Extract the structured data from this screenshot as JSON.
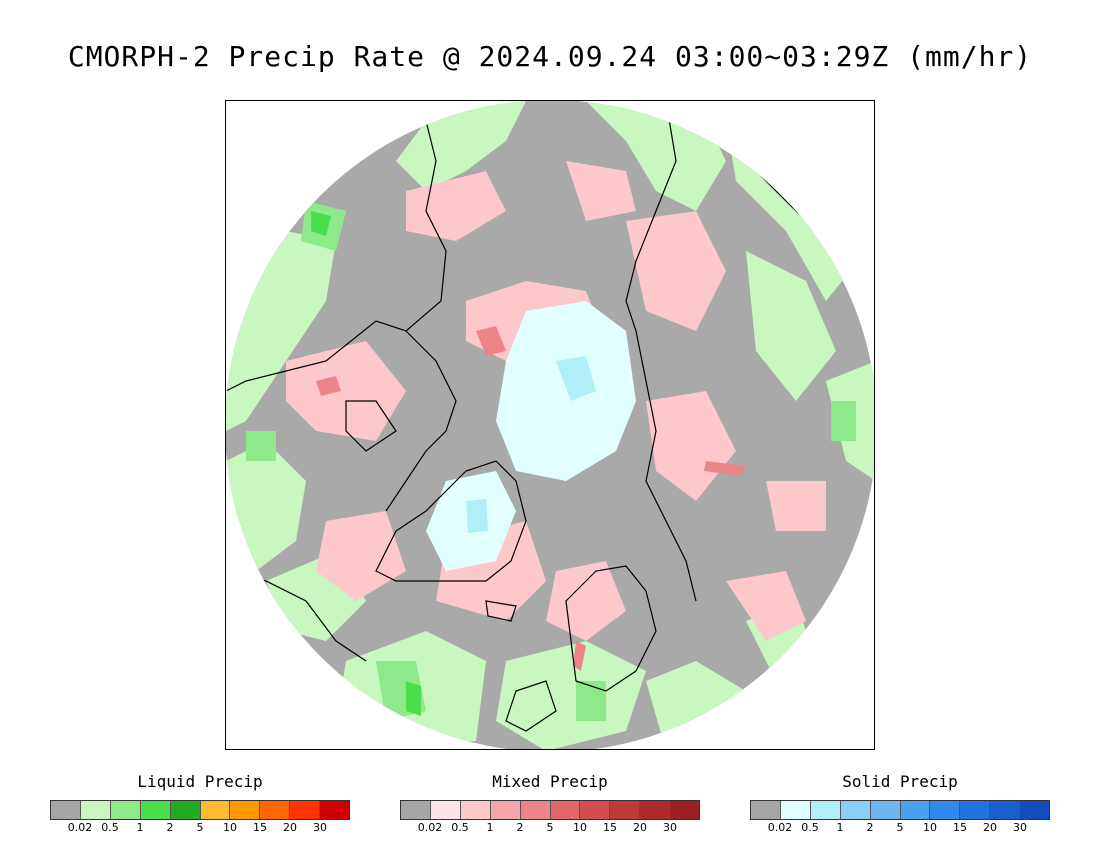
{
  "title": "CMORPH-2 Precip Rate @ 2024.09.24 03:00~03:29Z (mm/hr)",
  "map": {
    "projection": "polar-stereographic-north",
    "background_color": "#a9a9a9",
    "coastline_color": "#000000"
  },
  "legends": [
    {
      "title": "Liquid Precip",
      "ticks": [
        "0.02",
        "0.5",
        "1",
        "2",
        "5",
        "10",
        "15",
        "20",
        "30"
      ],
      "colors": [
        "#a6a6a6",
        "#c8f7c0",
        "#8ee98a",
        "#4cdd4c",
        "#22aa22",
        "#ffbb33",
        "#ff9900",
        "#ff6600",
        "#ff3300",
        "#cc0000"
      ]
    },
    {
      "title": "Mixed Precip",
      "ticks": [
        "0.02",
        "0.5",
        "1",
        "2",
        "5",
        "10",
        "15",
        "20",
        "30"
      ],
      "colors": [
        "#a6a6a6",
        "#ffe4e8",
        "#fcc8cc",
        "#f4a7aa",
        "#ec8587",
        "#e06668",
        "#d14d50",
        "#c03a3c",
        "#ad2a2c",
        "#9a2022"
      ]
    },
    {
      "title": "Solid Precip",
      "ticks": [
        "0.02",
        "0.5",
        "1",
        "2",
        "5",
        "10",
        "15",
        "20",
        "30"
      ],
      "colors": [
        "#a6a6a6",
        "#e2ffff",
        "#b0eefa",
        "#8ccef5",
        "#6db6f2",
        "#4aa0ee",
        "#3389ea",
        "#1f72e0",
        "#1a5fd0",
        "#124cbe"
      ]
    }
  ]
}
